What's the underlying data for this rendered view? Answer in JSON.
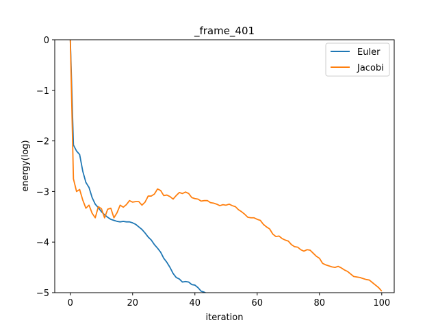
{
  "chart_data": {
    "type": "line",
    "title": "_frame_401",
    "xlabel": "iteration",
    "ylabel": "energy(log)",
    "xlim": [
      -5,
      104
    ],
    "ylim": [
      -5,
      0
    ],
    "xticks": [
      0,
      20,
      40,
      60,
      80,
      100
    ],
    "yticks": [
      0,
      -1,
      -2,
      -3,
      -4,
      -5
    ],
    "xtick_labels": [
      "0",
      "20",
      "40",
      "60",
      "80",
      "100"
    ],
    "ytick_labels": [
      "0",
      "−1",
      "−2",
      "−3",
      "−4",
      "−5"
    ],
    "grid": false,
    "legend_position": "top-right",
    "series": [
      {
        "name": "Euler",
        "color": "#1f77b4",
        "x": [
          0,
          1,
          2,
          3,
          4,
          5,
          6,
          7,
          8,
          9,
          10,
          11,
          12,
          13,
          14,
          15,
          16,
          17,
          18,
          19,
          20,
          21,
          22,
          23,
          24,
          25,
          26,
          27,
          28,
          29,
          30,
          31,
          32,
          33,
          34,
          35,
          36,
          37,
          38,
          39,
          40,
          41,
          42,
          43,
          44,
          45
        ],
        "values": [
          0.0,
          -2.08,
          -2.2,
          -2.27,
          -2.6,
          -2.82,
          -2.92,
          -3.12,
          -3.25,
          -3.32,
          -3.4,
          -3.46,
          -3.51,
          -3.55,
          -3.57,
          -3.59,
          -3.6,
          -3.59,
          -3.6,
          -3.6,
          -3.62,
          -3.65,
          -3.7,
          -3.75,
          -3.82,
          -3.9,
          -3.96,
          -4.05,
          -4.12,
          -4.2,
          -4.32,
          -4.4,
          -4.5,
          -4.62,
          -4.7,
          -4.73,
          -4.79,
          -4.78,
          -4.79,
          -4.84,
          -4.85,
          -4.9,
          -4.97,
          -4.99,
          -5.02,
          -5.05
        ]
      },
      {
        "name": "Jacobi",
        "color": "#ff7f0e",
        "x": [
          0,
          1,
          2,
          3,
          4,
          5,
          6,
          7,
          8,
          9,
          10,
          11,
          12,
          13,
          14,
          15,
          16,
          17,
          18,
          19,
          20,
          21,
          22,
          23,
          24,
          25,
          26,
          27,
          28,
          29,
          30,
          31,
          32,
          33,
          34,
          35,
          36,
          37,
          38,
          39,
          40,
          41,
          42,
          43,
          44,
          45,
          46,
          47,
          48,
          49,
          50,
          51,
          52,
          53,
          54,
          55,
          56,
          57,
          58,
          59,
          60,
          61,
          62,
          63,
          64,
          65,
          66,
          67,
          68,
          69,
          70,
          71,
          72,
          73,
          74,
          75,
          76,
          77,
          78,
          79,
          80,
          81,
          82,
          83,
          84,
          85,
          86,
          87,
          88,
          89,
          90,
          91,
          92,
          93,
          94,
          95,
          96,
          97,
          98,
          99,
          100
        ],
        "values": [
          0.0,
          -2.75,
          -3.0,
          -2.96,
          -3.17,
          -3.33,
          -3.27,
          -3.43,
          -3.52,
          -3.3,
          -3.34,
          -3.52,
          -3.35,
          -3.33,
          -3.52,
          -3.42,
          -3.27,
          -3.31,
          -3.26,
          -3.18,
          -3.21,
          -3.2,
          -3.2,
          -3.27,
          -3.21,
          -3.09,
          -3.09,
          -3.05,
          -2.95,
          -2.98,
          -3.08,
          -3.07,
          -3.1,
          -3.15,
          -3.08,
          -3.02,
          -3.04,
          -3.01,
          -3.04,
          -3.12,
          -3.14,
          -3.15,
          -3.19,
          -3.18,
          -3.18,
          -3.22,
          -3.23,
          -3.25,
          -3.28,
          -3.26,
          -3.27,
          -3.25,
          -3.28,
          -3.3,
          -3.36,
          -3.4,
          -3.45,
          -3.51,
          -3.52,
          -3.52,
          -3.55,
          -3.57,
          -3.65,
          -3.7,
          -3.74,
          -3.84,
          -3.89,
          -3.88,
          -3.93,
          -3.96,
          -3.98,
          -4.05,
          -4.09,
          -4.1,
          -4.15,
          -4.18,
          -4.15,
          -4.16,
          -4.22,
          -4.28,
          -4.32,
          -4.42,
          -4.45,
          -4.47,
          -4.49,
          -4.5,
          -4.48,
          -4.51,
          -4.55,
          -4.58,
          -4.63,
          -4.68,
          -4.69,
          -4.7,
          -4.72,
          -4.74,
          -4.75,
          -4.8,
          -4.85,
          -4.9,
          -4.97
        ]
      }
    ]
  }
}
